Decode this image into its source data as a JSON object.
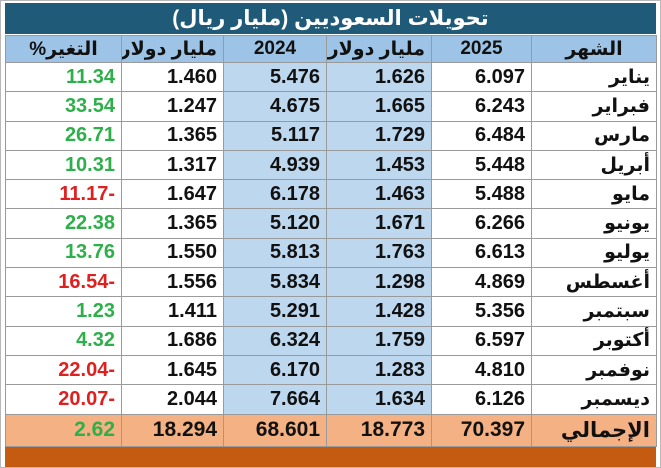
{
  "title": "تحويلات السعوديين (مليار ريال)",
  "header": [
    "الشهر",
    "2025",
    "مليار دولار",
    "2024",
    "مليار دولار",
    "التغير%"
  ],
  "rows": [
    [
      "يناير",
      "6.097",
      "1.626",
      "5.476",
      "1.460",
      "11.34"
    ],
    [
      "فبراير",
      "6.243",
      "1.665",
      "4.675",
      "1.247",
      "33.54"
    ],
    [
      "مارس",
      "6.484",
      "1.729",
      "5.117",
      "1.365",
      "26.71"
    ],
    [
      "أبريل",
      "5.448",
      "1.453",
      "4.939",
      "1.317",
      "10.31"
    ],
    [
      "مايو",
      "5.488",
      "1.463",
      "6.178",
      "1.647",
      "-11.17"
    ],
    [
      "يونيو",
      "6.266",
      "1.671",
      "5.120",
      "1.365",
      "22.38"
    ],
    [
      "يوليو",
      "6.613",
      "1.763",
      "5.813",
      "1.550",
      "13.76"
    ],
    [
      "أغسطس",
      "4.869",
      "1.298",
      "5.834",
      "1.556",
      "-16.54"
    ],
    [
      "سبتمبر",
      "5.356",
      "1.428",
      "5.291",
      "1.411",
      "1.23"
    ],
    [
      "أكتوبر",
      "6.597",
      "1.759",
      "6.324",
      "1.686",
      "4.32"
    ],
    [
      "نوفمبر",
      "4.810",
      "1.283",
      "6.170",
      "1.645",
      "-22.04"
    ],
    [
      "ديسمبر",
      "6.126",
      "1.634",
      "7.664",
      "2.044",
      "-20.07"
    ]
  ],
  "total": [
    "الإجمالي",
    "70.397",
    "18.773",
    "68.601",
    "18.294",
    "2.62"
  ],
  "positive_color": "#2eaf4a",
  "negative_color": "#e01f1f"
}
